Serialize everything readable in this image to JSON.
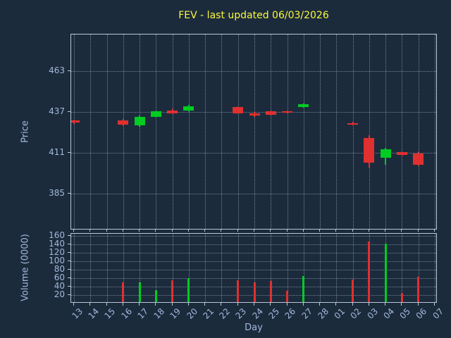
{
  "chart_data": {
    "type": "candlestick",
    "title": "FEV - last updated 06/03/2026",
    "xlabel": "Day",
    "x_ticklabels": [
      "13",
      "14",
      "15",
      "16",
      "17",
      "18",
      "19",
      "20",
      "21",
      "22",
      "23",
      "24",
      "25",
      "26",
      "27",
      "28",
      "01",
      "02",
      "03",
      "04",
      "05",
      "06",
      "07"
    ],
    "colors": {
      "up": "#00cc22",
      "down": "#e03030",
      "title": "#f8f83c",
      "axis_text": "#a2b9dc",
      "background": "#1c2b3c",
      "spine": "#b9c5d6",
      "grid": "rgba(185,200,220,0.55)"
    },
    "price_panel": {
      "ylabel": "Price",
      "yticks": [
        385,
        411,
        437,
        463
      ],
      "ylim": [
        362,
        486
      ],
      "grid": "dotted",
      "candles": [
        {
          "day": "13",
          "open": 431.5,
          "high": 432.0,
          "low": 429.5,
          "close": 430.2
        },
        {
          "day": "16",
          "open": 431.5,
          "high": 432.5,
          "low": 428.0,
          "close": 429.0
        },
        {
          "day": "17",
          "open": 428.5,
          "high": 434.5,
          "low": 427.5,
          "close": 434.0
        },
        {
          "day": "18",
          "open": 434.0,
          "high": 438.0,
          "low": 433.5,
          "close": 437.5
        },
        {
          "day": "19",
          "open": 438.0,
          "high": 439.0,
          "low": 435.5,
          "close": 436.0
        },
        {
          "day": "20",
          "open": 438.0,
          "high": 441.5,
          "low": 437.5,
          "close": 440.5
        },
        {
          "day": "23",
          "open": 440.0,
          "high": 440.5,
          "low": 435.5,
          "close": 436.0
        },
        {
          "day": "24",
          "open": 436.0,
          "high": 437.0,
          "low": 434.0,
          "close": 434.5
        },
        {
          "day": "25",
          "open": 437.5,
          "high": 438.0,
          "low": 434.5,
          "close": 435.0
        },
        {
          "day": "26",
          "open": 437.2,
          "high": 438.0,
          "low": 436.0,
          "close": 436.3
        },
        {
          "day": "27",
          "open": 440.0,
          "high": 442.5,
          "low": 439.5,
          "close": 441.8
        },
        {
          "day": "02",
          "open": 430.0,
          "high": 430.5,
          "low": 428.5,
          "close": 429.0
        },
        {
          "day": "03",
          "open": 420.5,
          "high": 422.0,
          "low": 401.5,
          "close": 405.0
        },
        {
          "day": "04",
          "open": 408.0,
          "high": 414.0,
          "low": 403.5,
          "close": 413.5
        },
        {
          "day": "05",
          "open": 411.5,
          "high": 412.0,
          "low": 408.5,
          "close": 409.5
        },
        {
          "day": "06",
          "open": 410.5,
          "high": 412.0,
          "low": 402.5,
          "close": 403.5
        }
      ]
    },
    "volume_panel": {
      "ylabel": "Volume (0000)",
      "yticks": [
        20,
        40,
        60,
        80,
        100,
        120,
        140,
        160
      ],
      "ylim": [
        0,
        165
      ],
      "bars": [
        {
          "day": "16",
          "value": 50,
          "direction": "down"
        },
        {
          "day": "17",
          "value": 50,
          "direction": "up"
        },
        {
          "day": "18",
          "value": 32,
          "direction": "up"
        },
        {
          "day": "19",
          "value": 55,
          "direction": "down"
        },
        {
          "day": "20",
          "value": 60,
          "direction": "up"
        },
        {
          "day": "23",
          "value": 55,
          "direction": "down"
        },
        {
          "day": "24",
          "value": 50,
          "direction": "down"
        },
        {
          "day": "25",
          "value": 53,
          "direction": "down"
        },
        {
          "day": "26",
          "value": 30,
          "direction": "down"
        },
        {
          "day": "27",
          "value": 65,
          "direction": "up"
        },
        {
          "day": "02",
          "value": 57,
          "direction": "down"
        },
        {
          "day": "03",
          "value": 147,
          "direction": "down"
        },
        {
          "day": "04",
          "value": 142,
          "direction": "up"
        },
        {
          "day": "05",
          "value": 25,
          "direction": "down"
        },
        {
          "day": "06",
          "value": 63,
          "direction": "down"
        }
      ]
    }
  }
}
